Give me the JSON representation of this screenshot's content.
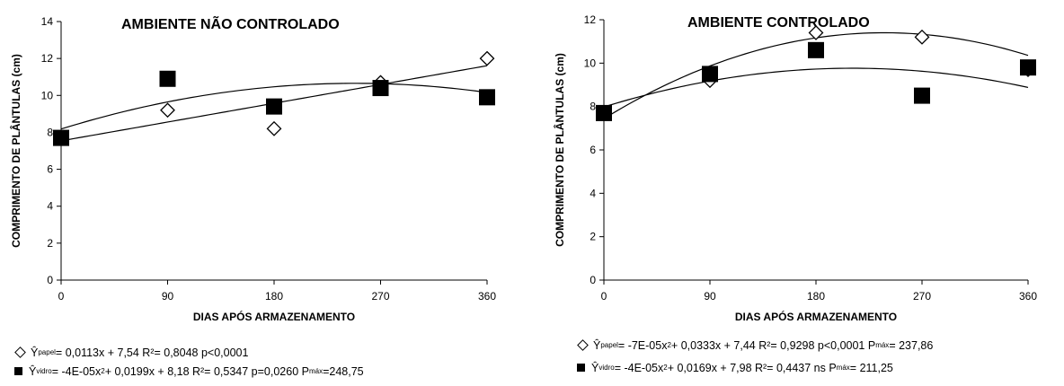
{
  "chart_data": [
    {
      "type": "scatter",
      "title": "AMBIENTE NÃO CONTROLADO",
      "xlabel": "DIAS APÓS ARMAZENAMENTO",
      "ylabel": "COMPRIMENTO DE PLÂNTULAS (cm)",
      "xlim": [
        0,
        360
      ],
      "ylim": [
        0,
        14
      ],
      "xticks": [
        0,
        90,
        180,
        270,
        360
      ],
      "yticks": [
        0,
        2,
        4,
        6,
        8,
        10,
        12,
        14
      ],
      "grid": false,
      "series": [
        {
          "marker": "open-diamond",
          "x": [
            0,
            90,
            180,
            270,
            360
          ],
          "y": [
            7.7,
            9.2,
            8.2,
            10.7,
            12.0
          ],
          "fit": {
            "a": 0,
            "b": 0.0113,
            "c": 7.54
          },
          "legend_parts": {
            "pre": "Ŷ",
            "sub": "papel",
            "text": " = 0,0113x + 7,54  R²= 0,8048  p<0,0001",
            "sub2": "",
            "text2": ""
          }
        },
        {
          "marker": "filled-square",
          "x": [
            0,
            90,
            180,
            270,
            360
          ],
          "y": [
            7.7,
            10.9,
            9.4,
            10.4,
            9.9
          ],
          "fit": {
            "a": -4e-05,
            "b": 0.0199,
            "c": 8.18
          },
          "legend_parts": {
            "pre": "Ŷ",
            "sub": "vidro",
            "text": " =  -4E-05x",
            "sup": "2",
            "text_b": " + 0,0199x + 8,18  R²= 0,5347  p=0,0260  P",
            "sub2": "máx",
            "text2": "=248,75"
          }
        }
      ]
    },
    {
      "type": "scatter",
      "title": "AMBIENTE CONTROLADO",
      "xlabel": "DIAS APÓS ARMAZENAMENTO",
      "ylabel": "COMPRIMENTO DE PLÂNTULAS (cm)",
      "xlim": [
        0,
        360
      ],
      "ylim": [
        0,
        12
      ],
      "xticks": [
        0,
        90,
        180,
        270,
        360
      ],
      "yticks": [
        0,
        2,
        4,
        6,
        8,
        10,
        12
      ],
      "grid": false,
      "series": [
        {
          "marker": "open-diamond",
          "x": [
            0,
            90,
            180,
            270,
            360
          ],
          "y": [
            7.7,
            9.2,
            11.4,
            11.2,
            9.7
          ],
          "fit": {
            "a": -7e-05,
            "b": 0.0333,
            "c": 7.44
          },
          "legend_parts": {
            "pre": "Ŷ",
            "sub": "papel",
            "text": " = -7E-05x",
            "sup": "2",
            "text_b": " + 0,0333x + 7,44  R²= 0,9298  p<0,0001   P",
            "sub2": "máx",
            "text2": "= 237,86"
          }
        },
        {
          "marker": "filled-square",
          "x": [
            0,
            90,
            180,
            270,
            360
          ],
          "y": [
            7.7,
            9.5,
            10.6,
            8.5,
            9.8
          ],
          "fit": {
            "a": -4e-05,
            "b": 0.0169,
            "c": 7.98
          },
          "legend_parts": {
            "pre": "Ŷ",
            "sub": "vidro",
            "text": " = -4E-05x",
            "sup": "2",
            "text_b": " + 0,0169x + 7,98  R²= 0,4437  ns     P",
            "sub2": "máx",
            "text2": "= 211,25"
          }
        }
      ]
    }
  ]
}
